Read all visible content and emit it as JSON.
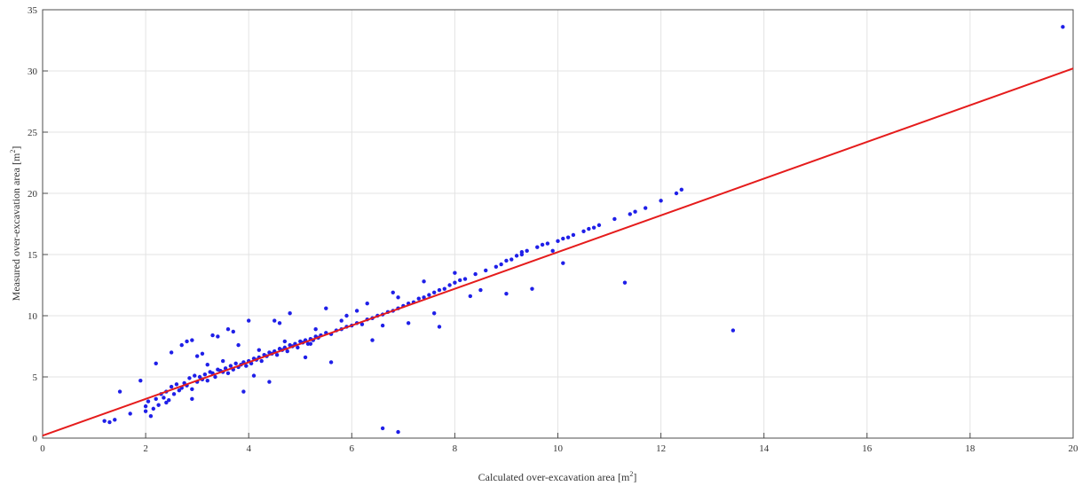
{
  "chart_data": {
    "type": "scatter",
    "xlabel": "Calculated over-excavation area [m",
    "xlabel_sup": "2",
    "xlabel_end": "]",
    "ylabel": "Measured over-excavation area  [m",
    "ylabel_sup": "2",
    "ylabel_end": "]",
    "xlim": [
      0,
      20
    ],
    "ylim": [
      0,
      35
    ],
    "xticks": [
      0,
      2,
      4,
      6,
      8,
      10,
      12,
      14,
      16,
      18,
      20
    ],
    "yticks": [
      0,
      5,
      10,
      15,
      20,
      25,
      30,
      35
    ],
    "grid": true,
    "colors": {
      "points": "#1f1fe8",
      "line": "#e51c1c",
      "grid": "#e3e3e3",
      "axes": "#4d4d4d"
    },
    "series": [
      {
        "type": "scatter",
        "x": [
          1.2,
          1.3,
          1.4,
          1.5,
          1.7,
          1.9,
          2.0,
          2.05,
          2.1,
          2.15,
          2.2,
          2.25,
          2.3,
          2.35,
          2.4,
          2.45,
          2.5,
          2.55,
          2.6,
          2.65,
          2.7,
          2.75,
          2.8,
          2.85,
          2.9,
          2.95,
          3.0,
          3.05,
          3.1,
          3.15,
          3.2,
          3.25,
          3.3,
          3.35,
          3.4,
          3.45,
          3.5,
          3.55,
          3.6,
          3.65,
          3.7,
          3.75,
          3.8,
          3.85,
          3.9,
          3.95,
          4.0,
          4.05,
          4.1,
          4.15,
          4.2,
          4.25,
          4.3,
          4.35,
          4.4,
          4.45,
          4.5,
          4.55,
          4.6,
          4.65,
          4.7,
          4.75,
          4.8,
          4.85,
          4.9,
          4.95,
          5.0,
          5.05,
          5.1,
          5.15,
          5.2,
          5.25,
          5.3,
          5.35,
          5.4,
          5.5,
          5.6,
          5.7,
          5.8,
          5.9,
          6.0,
          6.1,
          6.2,
          6.3,
          6.4,
          6.5,
          6.6,
          6.7,
          6.8,
          6.9,
          7.0,
          7.1,
          7.2,
          7.3,
          7.4,
          7.5,
          7.6,
          7.7,
          7.8,
          7.9,
          8.0,
          8.1,
          8.2,
          8.4,
          8.6,
          8.8,
          8.9,
          9.0,
          9.1,
          9.2,
          9.3,
          9.4,
          9.6,
          9.7,
          9.8,
          10.0,
          10.1,
          10.2,
          10.3,
          10.5,
          10.6,
          10.7,
          10.8,
          11.1,
          11.4,
          11.5,
          11.7,
          12.0,
          12.3,
          12.4,
          2.7,
          2.9,
          3.0,
          3.3,
          3.6,
          3.8,
          4.0,
          4.5,
          4.6,
          5.5,
          6.1,
          6.8,
          2.2,
          2.5,
          2.8,
          3.1,
          3.4,
          3.7,
          4.2,
          4.8,
          5.3,
          5.8,
          6.3,
          6.9,
          7.4,
          8.0,
          9.3,
          11.3,
          13.4,
          6.6,
          6.9,
          19.8,
          2.0,
          2.4,
          3.9,
          4.1,
          4.4,
          5.1,
          5.6,
          6.4,
          7.1,
          7.7,
          8.3,
          9.0,
          9.5,
          10.1,
          3.5,
          3.2,
          2.9,
          4.7,
          5.2,
          5.9,
          6.6,
          7.6,
          8.5,
          9.9
        ],
        "y": [
          1.4,
          1.3,
          1.5,
          3.8,
          2.0,
          4.7,
          2.2,
          3.0,
          1.8,
          2.4,
          3.2,
          2.7,
          3.6,
          3.3,
          3.8,
          3.1,
          4.2,
          3.6,
          4.4,
          3.9,
          4.1,
          4.5,
          4.3,
          4.9,
          4.0,
          5.1,
          4.6,
          5.0,
          4.8,
          5.2,
          4.7,
          5.4,
          5.3,
          5.0,
          5.6,
          5.5,
          5.4,
          5.7,
          5.3,
          5.9,
          5.6,
          6.1,
          5.8,
          6.0,
          6.2,
          5.9,
          6.3,
          6.1,
          6.5,
          6.4,
          6.6,
          6.3,
          6.8,
          6.7,
          7.0,
          6.9,
          7.1,
          6.8,
          7.3,
          7.2,
          7.4,
          7.1,
          7.6,
          7.5,
          7.7,
          7.4,
          7.9,
          7.8,
          8.0,
          7.7,
          8.1,
          8.0,
          8.3,
          8.2,
          8.4,
          8.6,
          8.5,
          8.8,
          8.9,
          9.1,
          9.2,
          9.4,
          9.3,
          9.7,
          9.8,
          10.0,
          10.1,
          10.3,
          10.4,
          10.6,
          10.8,
          11.0,
          11.1,
          11.4,
          11.5,
          11.7,
          11.9,
          12.1,
          12.2,
          12.5,
          12.7,
          12.9,
          13.0,
          13.4,
          13.7,
          14.0,
          14.2,
          14.5,
          14.6,
          14.9,
          15.2,
          15.3,
          15.6,
          15.8,
          15.9,
          16.1,
          16.3,
          16.4,
          16.6,
          16.9,
          17.1,
          17.2,
          17.4,
          17.9,
          18.3,
          18.5,
          18.8,
          19.4,
          20.0,
          20.3,
          7.6,
          8.0,
          6.7,
          8.4,
          8.9,
          7.6,
          9.6,
          9.6,
          9.4,
          10.6,
          10.4,
          11.9,
          6.1,
          7.0,
          7.9,
          6.9,
          8.3,
          8.7,
          7.2,
          10.2,
          8.9,
          9.6,
          11.0,
          11.5,
          12.8,
          13.5,
          15.0,
          12.7,
          8.8,
          0.8,
          0.5,
          33.6,
          2.6,
          2.9,
          3.8,
          5.1,
          4.6,
          6.6,
          6.2,
          8.0,
          9.4,
          9.1,
          11.6,
          11.8,
          12.2,
          14.3,
          6.3,
          6.0,
          3.2,
          7.9,
          7.7,
          10.0,
          9.2,
          10.2,
          12.1,
          15.3
        ]
      },
      {
        "type": "line",
        "x": [
          0,
          20
        ],
        "y": [
          0.2,
          30.2
        ]
      }
    ]
  }
}
